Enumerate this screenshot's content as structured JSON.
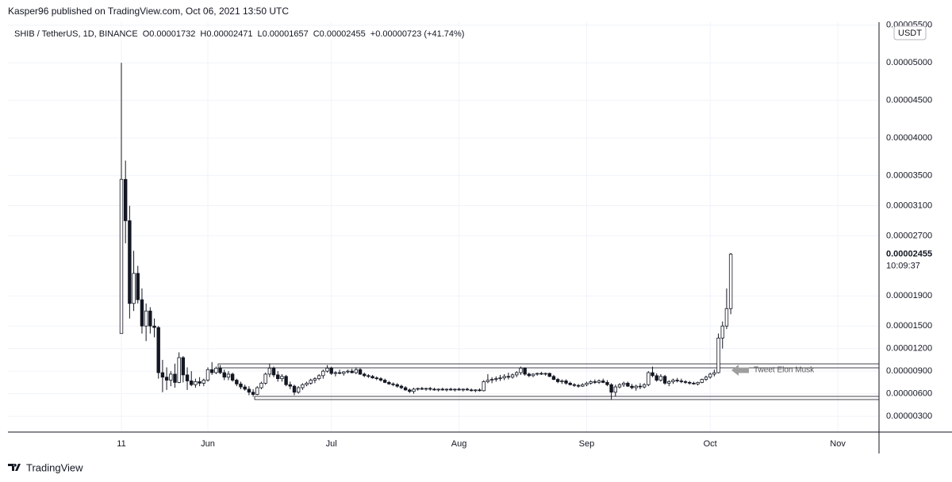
{
  "published": "Kasper96 published on TradingView.com, Oct 06, 2021 13:50 UTC",
  "brand": "TradingView",
  "chart_data": {
    "type": "candlestick",
    "title": "SHIB / TetherUS, 1D, BINANCE",
    "ohlc_labels": [
      "O",
      "H",
      "L",
      "C"
    ],
    "change": "+0.00000723 (+41.74%)",
    "currency": "USDT",
    "countdown": "10:09:37",
    "annotation": "Tweet Elon Musk",
    "up_color": "#ffffff",
    "down_color": "#131722",
    "grid": true,
    "ylim": [
      9e-07,
      5.54e-05
    ],
    "yticks": [
      {
        "value": 5.5e-05,
        "label": "0.00005500"
      },
      {
        "value": 5e-05,
        "label": "0.00005000"
      },
      {
        "value": 4.5e-05,
        "label": "0.00004500"
      },
      {
        "value": 4e-05,
        "label": "0.00004000"
      },
      {
        "value": 3.5e-05,
        "label": "0.00003500"
      },
      {
        "value": 3.1e-05,
        "label": "0.00003100"
      },
      {
        "value": 2.7e-05,
        "label": "0.00002700"
      },
      {
        "value": 1.9e-05,
        "label": "0.00001900"
      },
      {
        "value": 1.5e-05,
        "label": "0.00001500"
      },
      {
        "value": 1.2e-05,
        "label": "0.00001200"
      },
      {
        "value": 9e-06,
        "label": "0.00000900"
      },
      {
        "value": 6e-06,
        "label": "0.00000600"
      },
      {
        "value": 3e-06,
        "label": "0.00000300"
      }
    ],
    "categories": [
      "11",
      null,
      null,
      null,
      null,
      null,
      null,
      null,
      null,
      null,
      null,
      null,
      null,
      null,
      null,
      null,
      null,
      null,
      null,
      null,
      null,
      "Jun",
      null,
      null,
      null,
      null,
      null,
      null,
      null,
      null,
      null,
      null,
      null,
      null,
      null,
      null,
      null,
      null,
      null,
      null,
      null,
      null,
      null,
      null,
      null,
      null,
      null,
      null,
      null,
      null,
      null,
      "Jul",
      null,
      null,
      null,
      null,
      null,
      null,
      null,
      null,
      null,
      null,
      null,
      null,
      null,
      null,
      null,
      null,
      null,
      null,
      null,
      null,
      null,
      null,
      null,
      null,
      null,
      null,
      null,
      null,
      null,
      null,
      "Aug",
      null,
      null,
      null,
      null,
      null,
      null,
      null,
      null,
      null,
      null,
      null,
      null,
      null,
      null,
      null,
      null,
      null,
      null,
      null,
      null,
      null,
      null,
      null,
      null,
      null,
      null,
      null,
      null,
      null,
      null,
      "Sep",
      null,
      null,
      null,
      null,
      null,
      null,
      null,
      null,
      null,
      null,
      null,
      null,
      null,
      null,
      null,
      null,
      null,
      null,
      null,
      null,
      null,
      null,
      null,
      null,
      null,
      null,
      null,
      null,
      null,
      "Oct",
      null,
      null,
      null,
      null,
      null,
      null,
      null,
      null,
      null,
      null,
      null,
      null,
      null,
      null,
      null,
      null,
      null,
      null,
      null,
      null,
      null,
      null,
      null,
      null,
      null,
      null,
      null,
      null,
      null,
      null,
      "Nov"
    ],
    "open": [
      1.4e-05,
      3.45e-05,
      2.9e-05,
      1.8e-05,
      2.2e-05,
      1.85e-05,
      1.5e-05,
      1.7e-05,
      1.5e-05,
      1.48e-05,
      8.8e-06,
      8.2e-06,
      7.8e-06,
      8.6e-06,
      7.5e-06,
      1.08e-05,
      8.5e-06,
      7.7e-06,
      7.2e-06,
      7.6e-06,
      7.4e-06,
      7.8e-06,
      9.2e-06,
      8.8e-06,
      9.4e-06,
      8.8e-06,
      8.2e-06,
      8.6e-06,
      7.8e-06,
      7.3e-06,
      6.9e-06,
      6.6e-06,
      6.2e-06,
      5.9e-06,
      6.8e-06,
      7.4e-06,
      8.6e-06,
      9.4e-06,
      8.5e-06,
      8e-06,
      8.3e-06,
      7.2e-06,
      7e-06,
      6.2e-06,
      6.8e-06,
      7.2e-06,
      7.4e-06,
      7.8e-06,
      8e-06,
      8.4e-06,
      9e-06,
      9.4e-06,
      8.7e-06,
      8.8e-06,
      8.7e-06,
      8.9e-06,
      9e-06,
      8.8e-06,
      9.2e-06,
      8.6e-06,
      8.4e-06,
      8.3e-06,
      8.1e-06,
      8e-06,
      7.8e-06,
      7.5e-06,
      7.3e-06,
      7.2e-06,
      7e-06,
      6.8e-06,
      6.5e-06,
      6.3e-06,
      6.6e-06,
      6.7e-06,
      6.6e-06,
      6.7e-06,
      6.6e-06,
      6.5e-06,
      6.6e-06,
      6.5e-06,
      6.6e-06,
      6.5e-06,
      6.6e-06,
      6.5e-06,
      6.6e-06,
      6.5e-06,
      6.4e-06,
      6.5e-06,
      6.4e-06,
      7.6e-06,
      7.8e-06,
      7.9e-06,
      8e-06,
      8.1e-06,
      8.3e-06,
      8.2e-06,
      8.5e-06,
      8.8e-06,
      9.4e-06,
      8.6e-06,
      8.4e-06,
      8.6e-06,
      8.7e-06,
      8.6e-06,
      8.7e-06,
      8.3e-06,
      7.9e-06,
      7.6e-06,
      7.7e-06,
      7.4e-06,
      7.2e-06,
      7.1e-06,
      7e-06,
      7.2e-06,
      7.4e-06,
      7.6e-06,
      7.5e-06,
      7.7e-06,
      7.5e-06,
      7.2e-06,
      6.2e-06,
      6.9e-06,
      7.2e-06,
      7.4e-06,
      7e-06,
      6.8e-06,
      7e-06,
      6.9e-06,
      7.2e-06,
      8.8e-06,
      8.4e-06,
      7.8e-06,
      8.3e-06,
      7.4e-06,
      7.6e-06,
      7.8e-06,
      7.7e-06,
      7.6e-06,
      7.5e-06,
      7.4e-06,
      7.3e-06,
      7.5e-06,
      7.9e-06,
      8.2e-06,
      8.6e-06,
      8.8e-06,
      1.34e-05,
      1.5e-05,
      1.732e-05,
      null,
      null,
      null,
      null,
      null,
      null,
      null,
      null,
      null,
      null,
      null,
      null,
      null,
      null,
      null,
      null,
      null,
      null,
      null,
      null,
      null,
      null,
      null,
      null,
      null,
      null
    ],
    "high": [
      5e-05,
      3.7e-05,
      3.1e-05,
      2.5e-05,
      2.3e-05,
      2e-05,
      1.8e-05,
      1.75e-05,
      1.6e-05,
      1.5e-05,
      1.05e-05,
      9.5e-06,
      9e-06,
      1e-05,
      1.15e-05,
      1.1e-05,
      9.5e-06,
      9e-06,
      8e-06,
      8.2e-06,
      8e-06,
      9.5e-06,
      1.02e-05,
      9.6e-06,
      9.8e-06,
      9.2e-06,
      9e-06,
      8.8e-06,
      8e-06,
      7.6e-06,
      7.2e-06,
      7e-06,
      6.6e-06,
      7e-06,
      7.6e-06,
      8.8e-06,
      1e-05,
      9.6e-06,
      9e-06,
      8.6e-06,
      8.5e-06,
      7.6e-06,
      7.2e-06,
      7e-06,
      7.4e-06,
      7.6e-06,
      8e-06,
      8.2e-06,
      8.6e-06,
      9.2e-06,
      9.8e-06,
      9.6e-06,
      9e-06,
      9.2e-06,
      9e-06,
      9.2e-06,
      9.3e-06,
      9.5e-06,
      9.4e-06,
      8.8e-06,
      8.6e-06,
      8.5e-06,
      8.3e-06,
      8.2e-06,
      8e-06,
      7.7e-06,
      7.5e-06,
      7.4e-06,
      7.2e-06,
      7e-06,
      6.7e-06,
      6.8e-06,
      6.8e-06,
      6.9e-06,
      6.8e-06,
      6.9e-06,
      6.8e-06,
      6.7e-06,
      6.8e-06,
      6.7e-06,
      6.8e-06,
      6.7e-06,
      6.8e-06,
      6.7e-06,
      6.8e-06,
      6.7e-06,
      6.6e-06,
      6.7e-06,
      7.8e-06,
      8.6e-06,
      8.2e-06,
      8.3e-06,
      8.5e-06,
      8.6e-06,
      8.8e-06,
      8.7e-06,
      9e-06,
      9.6e-06,
      9.5e-06,
      8.8e-06,
      8.7e-06,
      8.8e-06,
      8.9e-06,
      8.8e-06,
      8.8e-06,
      8.5e-06,
      8.1e-06,
      7.9e-06,
      7.9e-06,
      7.6e-06,
      7.4e-06,
      7.3e-06,
      7.4e-06,
      7.6e-06,
      7.8e-06,
      7.9e-06,
      7.9e-06,
      8e-06,
      7.8e-06,
      7.4e-06,
      7.2e-06,
      7.4e-06,
      7.6e-06,
      7.6e-06,
      7.3e-06,
      7.2e-06,
      7.4e-06,
      7.4e-06,
      9e-06,
      9.6e-06,
      8.7e-06,
      8.6e-06,
      8.5e-06,
      7.8e-06,
      8e-06,
      8.1e-06,
      8e-06,
      7.8e-06,
      7.7e-06,
      7.6e-06,
      7.6e-06,
      8e-06,
      8.4e-06,
      8.8e-06,
      9.2e-06,
      1.4e-05,
      1.56e-05,
      2e-05,
      2.471e-05,
      null,
      null,
      null,
      null,
      null,
      null,
      null,
      null,
      null,
      null,
      null,
      null,
      null,
      null,
      null,
      null,
      null,
      null,
      null,
      null,
      null,
      null,
      null,
      null,
      null,
      null
    ],
    "low": [
      1.4e-05,
      2.6e-05,
      1.6e-05,
      1.7e-05,
      1.8e-05,
      1.4e-05,
      1.3e-05,
      1.4e-05,
      1.35e-05,
      8e-06,
      6.2e-06,
      6.5e-06,
      7e-06,
      6.8e-06,
      7.4e-06,
      7.5e-06,
      6.5e-06,
      7e-06,
      6.8e-06,
      7e-06,
      7e-06,
      7.6e-06,
      8.5e-06,
      8.6e-06,
      8.6e-06,
      7.8e-06,
      7.8e-06,
      7.6e-06,
      7e-06,
      6.6e-06,
      6.4e-06,
      5.8e-06,
      5.6e-06,
      5.8e-06,
      6.6e-06,
      7.2e-06,
      8.2e-06,
      8.2e-06,
      7.6e-06,
      7.6e-06,
      7e-06,
      6.6e-06,
      5.8e-06,
      6e-06,
      6.5e-06,
      7e-06,
      7.2e-06,
      7.4e-06,
      7.8e-06,
      8e-06,
      8.8e-06,
      8.5e-06,
      8.3e-06,
      8.6e-06,
      8.4e-06,
      8.7e-06,
      8.7e-06,
      8.6e-06,
      8.5e-06,
      8.2e-06,
      8.1e-06,
      8e-06,
      7.8e-06,
      7.6e-06,
      7.4e-06,
      7.2e-06,
      7e-06,
      6.8e-06,
      6.6e-06,
      6.4e-06,
      6.1e-06,
      6e-06,
      6.4e-06,
      6.5e-06,
      6.4e-06,
      6.4e-06,
      6.4e-06,
      6.3e-06,
      6.4e-06,
      6.3e-06,
      6.4e-06,
      6.3e-06,
      6.4e-06,
      6.3e-06,
      6.4e-06,
      6.3e-06,
      6.2e-06,
      6.3e-06,
      6.3e-06,
      7.4e-06,
      7.4e-06,
      7.6e-06,
      7.7e-06,
      7.8e-06,
      7.9e-06,
      8e-06,
      8.2e-06,
      8.5e-06,
      8.4e-06,
      8.2e-06,
      8.2e-06,
      8.4e-06,
      8.5e-06,
      8.4e-06,
      8.2e-06,
      7.8e-06,
      7.4e-06,
      7.3e-06,
      7.2e-06,
      7.1e-06,
      6.9e-06,
      6.8e-06,
      6.9e-06,
      7e-06,
      7.2e-06,
      7.3e-06,
      7.3e-06,
      7.4e-06,
      7e-06,
      5.2e-06,
      5.6e-06,
      6.7e-06,
      6.9e-06,
      6.9e-06,
      6.6e-06,
      6.4e-06,
      6.6e-06,
      6.7e-06,
      7e-06,
      8.2e-06,
      7.6e-06,
      7.6e-06,
      7.2e-06,
      7e-06,
      7.3e-06,
      7.5e-06,
      7.4e-06,
      7.3e-06,
      7.2e-06,
      7.2e-06,
      7.1e-06,
      7.4e-06,
      7.7e-06,
      8e-06,
      8.3e-06,
      8.7e-06,
      1.2e-05,
      1.46e-05,
      1.657e-05,
      null,
      null,
      null,
      null,
      null,
      null,
      null,
      null,
      null,
      null,
      null,
      null,
      null,
      null,
      null,
      null,
      null,
      null,
      null,
      null,
      null,
      null,
      null,
      null,
      null,
      null
    ],
    "close": [
      3.45e-05,
      2.9e-05,
      1.8e-05,
      2.2e-05,
      1.85e-05,
      1.5e-05,
      1.7e-05,
      1.5e-05,
      1.48e-05,
      8.8e-06,
      8.2e-06,
      7.8e-06,
      8.6e-06,
      7.5e-06,
      1.08e-05,
      8.5e-06,
      7.7e-06,
      7.2e-06,
      7.6e-06,
      7.4e-06,
      7.8e-06,
      9.2e-06,
      8.8e-06,
      9.4e-06,
      8.8e-06,
      8.2e-06,
      8.6e-06,
      7.8e-06,
      7.3e-06,
      6.9e-06,
      6.6e-06,
      6.2e-06,
      5.9e-06,
      6.8e-06,
      7.4e-06,
      8.6e-06,
      9.4e-06,
      8.5e-06,
      8e-06,
      8.3e-06,
      7.2e-06,
      7e-06,
      6.2e-06,
      6.8e-06,
      7.2e-06,
      7.4e-06,
      7.8e-06,
      8e-06,
      8.4e-06,
      9e-06,
      9.4e-06,
      8.7e-06,
      8.8e-06,
      8.7e-06,
      8.9e-06,
      9e-06,
      8.8e-06,
      9.2e-06,
      8.6e-06,
      8.4e-06,
      8.3e-06,
      8.1e-06,
      8e-06,
      7.8e-06,
      7.5e-06,
      7.3e-06,
      7.2e-06,
      7e-06,
      6.8e-06,
      6.5e-06,
      6.3e-06,
      6.6e-06,
      6.7e-06,
      6.6e-06,
      6.7e-06,
      6.6e-06,
      6.5e-06,
      6.6e-06,
      6.5e-06,
      6.6e-06,
      6.5e-06,
      6.6e-06,
      6.5e-06,
      6.6e-06,
      6.5e-06,
      6.4e-06,
      6.5e-06,
      6.4e-06,
      7.6e-06,
      7.8e-06,
      7.9e-06,
      8e-06,
      8.1e-06,
      8.3e-06,
      8.2e-06,
      8.5e-06,
      8.8e-06,
      9.4e-06,
      8.6e-06,
      8.4e-06,
      8.6e-06,
      8.7e-06,
      8.6e-06,
      8.7e-06,
      8.3e-06,
      7.9e-06,
      7.6e-06,
      7.7e-06,
      7.4e-06,
      7.2e-06,
      7.1e-06,
      7e-06,
      7.2e-06,
      7.4e-06,
      7.6e-06,
      7.5e-06,
      7.7e-06,
      7.5e-06,
      7.2e-06,
      6.2e-06,
      6.9e-06,
      7.2e-06,
      7.4e-06,
      7e-06,
      6.8e-06,
      7e-06,
      6.9e-06,
      7.2e-06,
      8.8e-06,
      8.4e-06,
      7.8e-06,
      8.3e-06,
      7.4e-06,
      7.6e-06,
      7.8e-06,
      7.7e-06,
      7.6e-06,
      7.5e-06,
      7.4e-06,
      7.3e-06,
      7.5e-06,
      7.9e-06,
      8.2e-06,
      8.6e-06,
      8.8e-06,
      1.34e-05,
      1.5e-05,
      1.732e-05,
      2.455e-05,
      null,
      null,
      null,
      null,
      null,
      null,
      null,
      null,
      null,
      null,
      null,
      null,
      null,
      null,
      null,
      null,
      null,
      null,
      null,
      null,
      null,
      null,
      null,
      null,
      null,
      null
    ]
  }
}
